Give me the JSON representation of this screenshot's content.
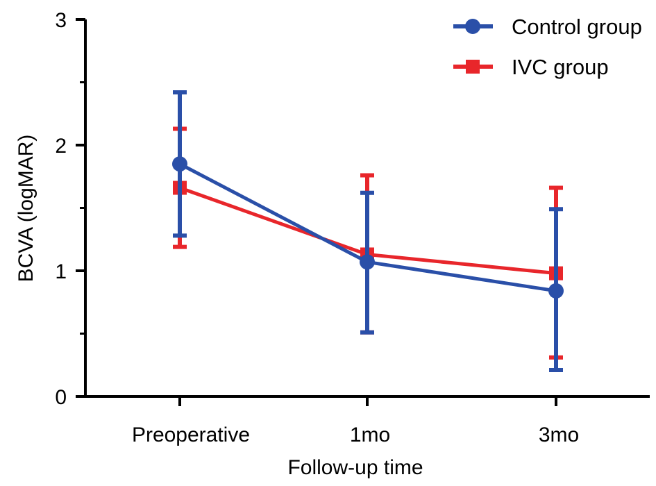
{
  "chart_data": {
    "type": "line",
    "title": "",
    "xlabel": "Follow-up time",
    "ylabel": "BCVA (logMAR)",
    "categories": [
      "Preoperative",
      "1mo",
      "3mo"
    ],
    "ylim": [
      0,
      3
    ],
    "yticks": [
      "0",
      "1",
      "2",
      "3"
    ],
    "grid": false,
    "legend_position": "top-right",
    "series": [
      {
        "name": "Control group",
        "color": "#2a4fa8",
        "marker": "circle",
        "values": [
          1.85,
          1.07,
          0.84
        ],
        "error_low": [
          1.28,
          0.51,
          0.21
        ],
        "error_high": [
          2.42,
          1.62,
          1.49
        ]
      },
      {
        "name": "IVC group",
        "color": "#e8262b",
        "marker": "square",
        "values": [
          1.66,
          1.13,
          0.98
        ],
        "error_low": [
          1.19,
          0.51,
          0.31
        ],
        "error_high": [
          2.13,
          1.76,
          1.66
        ]
      }
    ]
  }
}
